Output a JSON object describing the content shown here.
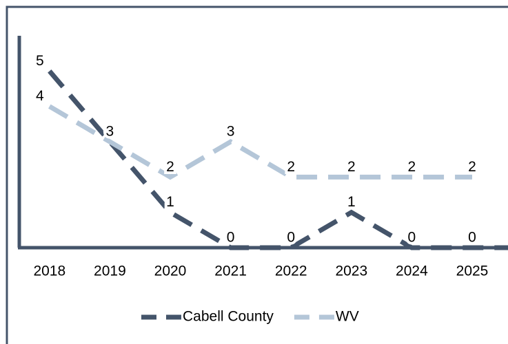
{
  "chart_data": {
    "type": "line",
    "categories": [
      "2018",
      "2019",
      "2020",
      "2021",
      "2022",
      "2023",
      "2024",
      "2025"
    ],
    "series": [
      {
        "name": "Cabell County",
        "color": "#44546a",
        "values": [
          5,
          3,
          1,
          0,
          0,
          1,
          0,
          0
        ]
      },
      {
        "name": "WV",
        "color": "#b4c6d8",
        "values": [
          4,
          3,
          2,
          3,
          2,
          2,
          2,
          2
        ]
      }
    ],
    "ylim": [
      0,
      6
    ],
    "legend": "bottom"
  }
}
